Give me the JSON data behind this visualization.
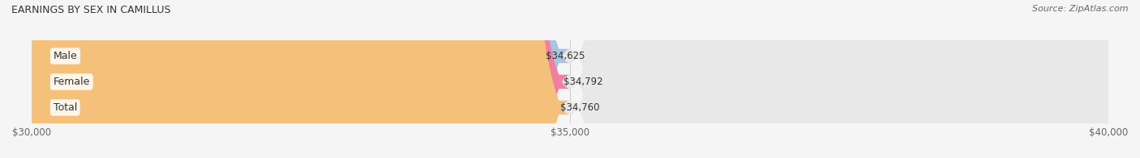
{
  "title": "EARNINGS BY SEX IN CAMILLUS",
  "source": "Source: ZipAtlas.com",
  "categories": [
    "Male",
    "Female",
    "Total"
  ],
  "values": [
    34625,
    34792,
    34760
  ],
  "bar_colors": [
    "#a8c4e0",
    "#f07fa0",
    "#f5c07a"
  ],
  "bar_labels": [
    "$34,625",
    "$34,792",
    "$34,760"
  ],
  "xlim": [
    30000,
    40000
  ],
  "xticks": [
    30000,
    35000,
    40000
  ],
  "xtick_labels": [
    "$30,000",
    "$35,000",
    "$40,000"
  ],
  "background_color": "#f5f5f5",
  "bar_bg_color": "#e8e8e8",
  "figsize": [
    14.06,
    1.96
  ],
  "dpi": 100
}
